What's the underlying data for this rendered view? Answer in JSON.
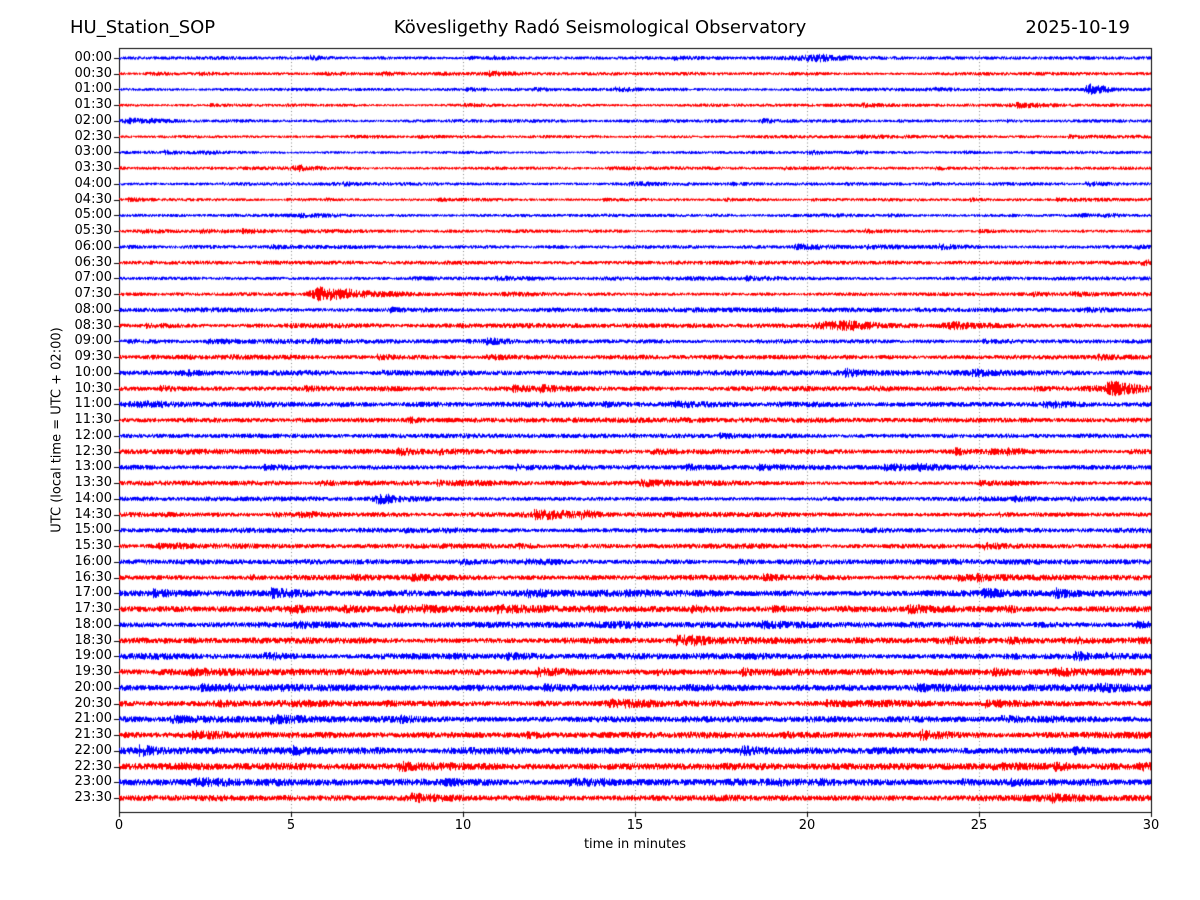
{
  "header": {
    "station": "HU_Station_SOP",
    "title": "Kövesligethy Radó Seismological Observatory",
    "date": "2025-10-19"
  },
  "chart_data": {
    "type": "line",
    "subtype": "helicorder-seismogram",
    "title": "Kövesligethy Radó Seismological Observatory",
    "station": "HU_Station_SOP",
    "date": "2025-10-19",
    "xlabel": "time in minutes",
    "ylabel": "UTC (local time = UTC + 02:00)",
    "xlim": [
      0,
      30
    ],
    "x_ticks": [
      0,
      5,
      10,
      15,
      20,
      25,
      30
    ],
    "x_gridlines": [
      5,
      10,
      15,
      20,
      25
    ],
    "grid": "vertical-dotted",
    "legend": "none",
    "minutes_per_row": 30,
    "colors": {
      "trace_even": "#0000ff",
      "trace_odd": "#ff0000",
      "grid": "#888888",
      "frame": "#000000",
      "background": "#ffffff"
    },
    "rows": [
      {
        "label": "00:00",
        "color": "#0000ff",
        "amp": 1.7,
        "events": [
          {
            "t0": 20.4,
            "rise": 0.5,
            "decay": 0.8,
            "amp": 1.6
          }
        ]
      },
      {
        "label": "00:30",
        "color": "#ff0000",
        "amp": 1.6,
        "events": []
      },
      {
        "label": "01:00",
        "color": "#0000ff",
        "amp": 1.5,
        "events": [
          {
            "t0": 28.2,
            "rise": 0.08,
            "decay": 0.25,
            "amp": 3.2
          }
        ]
      },
      {
        "label": "01:30",
        "color": "#ff0000",
        "amp": 1.5,
        "events": []
      },
      {
        "label": "02:00",
        "color": "#0000ff",
        "amp": 1.6,
        "events": [
          {
            "t0": 0.4,
            "rise": 0.2,
            "decay": 0.3,
            "amp": 1.2
          }
        ]
      },
      {
        "label": "02:30",
        "color": "#ff0000",
        "amp": 1.5,
        "events": []
      },
      {
        "label": "03:00",
        "color": "#0000ff",
        "amp": 1.5,
        "events": []
      },
      {
        "label": "03:30",
        "color": "#ff0000",
        "amp": 1.5,
        "events": [
          {
            "t0": 5.3,
            "rise": 0.2,
            "decay": 0.35,
            "amp": 1.0
          }
        ]
      },
      {
        "label": "04:00",
        "color": "#0000ff",
        "amp": 1.5,
        "events": []
      },
      {
        "label": "04:30",
        "color": "#ff0000",
        "amp": 1.6,
        "events": []
      },
      {
        "label": "05:00",
        "color": "#0000ff",
        "amp": 1.6,
        "events": []
      },
      {
        "label": "05:30",
        "color": "#ff0000",
        "amp": 1.6,
        "events": []
      },
      {
        "label": "06:00",
        "color": "#0000ff",
        "amp": 1.8,
        "events": []
      },
      {
        "label": "06:30",
        "color": "#ff0000",
        "amp": 1.8,
        "events": []
      },
      {
        "label": "07:00",
        "color": "#0000ff",
        "amp": 1.9,
        "events": []
      },
      {
        "label": "07:30",
        "color": "#ff0000",
        "amp": 1.9,
        "events": [
          {
            "t0": 5.85,
            "rise": 0.22,
            "decay": 1.2,
            "amp": 3.2
          }
        ]
      },
      {
        "label": "08:00",
        "color": "#0000ff",
        "amp": 2.1,
        "events": []
      },
      {
        "label": "08:30",
        "color": "#ff0000",
        "amp": 2.2,
        "events": [
          {
            "t0": 21.3,
            "rise": 0.6,
            "decay": 0.9,
            "amp": 0.9
          },
          {
            "t0": 24.4,
            "rise": 0.3,
            "decay": 0.5,
            "amp": 1.0
          }
        ]
      },
      {
        "label": "09:00",
        "color": "#0000ff",
        "amp": 2.2,
        "events": []
      },
      {
        "label": "09:30",
        "color": "#ff0000",
        "amp": 2.2,
        "events": []
      },
      {
        "label": "10:00",
        "color": "#0000ff",
        "amp": 2.4,
        "events": []
      },
      {
        "label": "10:30",
        "color": "#ff0000",
        "amp": 2.3,
        "events": [
          {
            "t0": 29.2,
            "rise": 0.6,
            "decay": 0.9,
            "amp": 0.9
          }
        ]
      },
      {
        "label": "11:00",
        "color": "#0000ff",
        "amp": 2.5,
        "events": [
          {
            "t0": 1.0,
            "rise": 0.5,
            "decay": 0.7,
            "amp": 0.8
          }
        ]
      },
      {
        "label": "11:30",
        "color": "#ff0000",
        "amp": 2.3,
        "events": []
      },
      {
        "label": "12:00",
        "color": "#0000ff",
        "amp": 2.2,
        "events": []
      },
      {
        "label": "12:30",
        "color": "#ff0000",
        "amp": 2.3,
        "events": []
      },
      {
        "label": "13:00",
        "color": "#0000ff",
        "amp": 2.2,
        "events": []
      },
      {
        "label": "13:30",
        "color": "#ff0000",
        "amp": 2.3,
        "events": []
      },
      {
        "label": "14:00",
        "color": "#0000ff",
        "amp": 2.3,
        "events": [
          {
            "t0": 7.6,
            "rise": 0.15,
            "decay": 0.6,
            "amp": 1.8
          }
        ]
      },
      {
        "label": "14:30",
        "color": "#ff0000",
        "amp": 2.3,
        "events": [
          {
            "t0": 13.0,
            "rise": 0.6,
            "decay": 0.8,
            "amp": 0.7
          }
        ]
      },
      {
        "label": "15:00",
        "color": "#0000ff",
        "amp": 2.3,
        "events": []
      },
      {
        "label": "15:30",
        "color": "#ff0000",
        "amp": 2.4,
        "events": []
      },
      {
        "label": "16:00",
        "color": "#0000ff",
        "amp": 2.4,
        "events": []
      },
      {
        "label": "16:30",
        "color": "#ff0000",
        "amp": 2.5,
        "events": []
      },
      {
        "label": "17:00",
        "color": "#0000ff",
        "amp": 3.0,
        "events": []
      },
      {
        "label": "17:30",
        "color": "#ff0000",
        "amp": 3.0,
        "events": []
      },
      {
        "label": "18:00",
        "color": "#0000ff",
        "amp": 2.9,
        "events": []
      },
      {
        "label": "18:30",
        "color": "#ff0000",
        "amp": 2.9,
        "events": []
      },
      {
        "label": "19:00",
        "color": "#0000ff",
        "amp": 3.0,
        "events": []
      },
      {
        "label": "19:30",
        "color": "#ff0000",
        "amp": 3.1,
        "events": [
          {
            "t0": 27.5,
            "rise": 0.3,
            "decay": 0.4,
            "amp": 0.8
          }
        ]
      },
      {
        "label": "20:00",
        "color": "#0000ff",
        "amp": 3.0,
        "events": [
          {
            "t0": 28.8,
            "rise": 0.4,
            "decay": 0.5,
            "amp": 0.7
          }
        ]
      },
      {
        "label": "20:30",
        "color": "#ff0000",
        "amp": 3.0,
        "events": []
      },
      {
        "label": "21:00",
        "color": "#0000ff",
        "amp": 2.9,
        "events": []
      },
      {
        "label": "21:30",
        "color": "#ff0000",
        "amp": 3.0,
        "events": []
      },
      {
        "label": "22:00",
        "color": "#0000ff",
        "amp": 3.2,
        "events": []
      },
      {
        "label": "22:30",
        "color": "#ff0000",
        "amp": 3.3,
        "events": []
      },
      {
        "label": "23:00",
        "color": "#0000ff",
        "amp": 3.1,
        "events": [
          {
            "t0": 2.8,
            "rise": 0.9,
            "decay": 1.0,
            "amp": 0.9
          }
        ]
      },
      {
        "label": "23:30",
        "color": "#ff0000",
        "amp": 3.0,
        "events": []
      }
    ]
  }
}
